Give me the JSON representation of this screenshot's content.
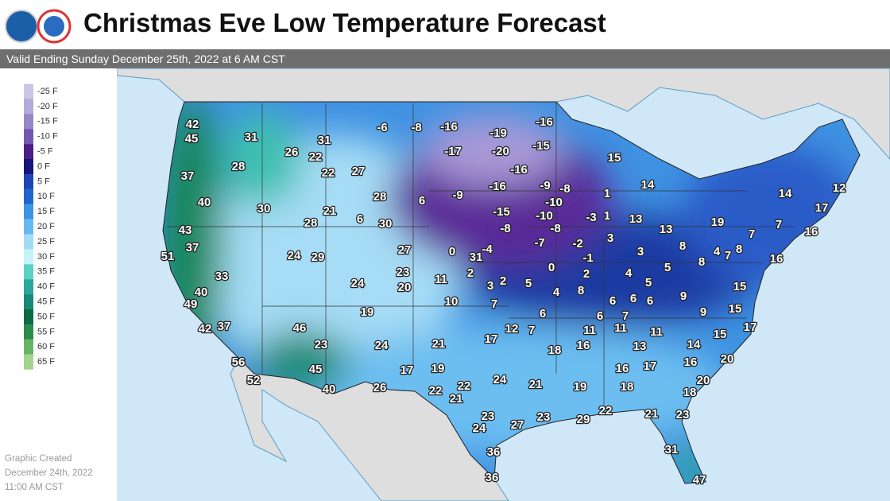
{
  "header": {
    "title": "Christmas Eve Low Temperature Forecast",
    "subtitle": "Valid Ending Sunday December 25th, 2022 at 6 AM CST"
  },
  "legend": [
    {
      "label": "-25 F",
      "color": "#c9c6e6"
    },
    {
      "label": "-20 F",
      "color": "#b2abdb"
    },
    {
      "label": "-15 F",
      "color": "#9688c6"
    },
    {
      "label": "-10 F",
      "color": "#7558ad"
    },
    {
      "label": "-5 F",
      "color": "#4a1f88"
    },
    {
      "label": "0 F",
      "color": "#15157a"
    },
    {
      "label": "5 F",
      "color": "#1f45b2"
    },
    {
      "label": "10 F",
      "color": "#2065d0"
    },
    {
      "label": "15 F",
      "color": "#3c95e4"
    },
    {
      "label": "20 F",
      "color": "#66b9f0"
    },
    {
      "label": "25 F",
      "color": "#a2dcf5"
    },
    {
      "label": "30 F",
      "color": "#c6f3f8"
    },
    {
      "label": "35 F",
      "color": "#5bd1c6"
    },
    {
      "label": "40 F",
      "color": "#2aa79e"
    },
    {
      "label": "45 F",
      "color": "#168a76"
    },
    {
      "label": "50 F",
      "color": "#0b6c46"
    },
    {
      "label": "55 F",
      "color": "#2b8d47"
    },
    {
      "label": "60 F",
      "color": "#66b566"
    },
    {
      "label": "65 F",
      "color": "#a2d48e"
    }
  ],
  "footer": [
    "Graphic Created",
    "December 24th, 2022",
    "11:00 AM CST"
  ],
  "map": {
    "temperatures": [
      42,
      45,
      31,
      26,
      31,
      22,
      28,
      22,
      27,
      37,
      -6,
      -8,
      -16,
      -19,
      -16,
      -20,
      -17,
      -15,
      -16,
      15,
      14,
      40,
      30,
      28,
      21,
      6,
      30,
      28,
      6,
      -9,
      -16,
      -9,
      -8,
      1,
      14,
      12,
      -10,
      -15,
      -10,
      -3,
      1,
      13,
      19,
      17,
      43,
      37,
      51,
      -8,
      -8,
      3,
      13,
      7,
      7,
      16,
      24,
      29,
      27,
      0,
      31,
      -4,
      -7,
      -2,
      -1,
      3,
      8,
      4,
      7,
      8,
      16,
      33,
      23,
      2,
      11,
      0,
      2,
      4,
      5,
      8,
      20,
      24,
      3,
      2,
      5,
      4,
      8,
      5,
      15,
      40,
      49,
      10,
      7,
      6,
      6,
      6,
      9,
      15,
      19,
      6,
      6,
      7,
      9,
      17,
      42,
      37,
      46,
      12,
      7,
      11,
      11,
      11,
      15,
      17,
      24,
      21,
      23,
      18,
      16,
      13,
      14,
      56,
      45,
      17,
      19,
      16,
      17,
      16,
      20,
      52,
      24,
      22,
      21,
      19,
      18,
      20,
      40,
      26,
      22,
      21,
      18,
      22,
      21,
      23,
      23,
      27,
      23,
      29,
      24,
      31,
      36,
      36,
      47
    ]
  }
}
